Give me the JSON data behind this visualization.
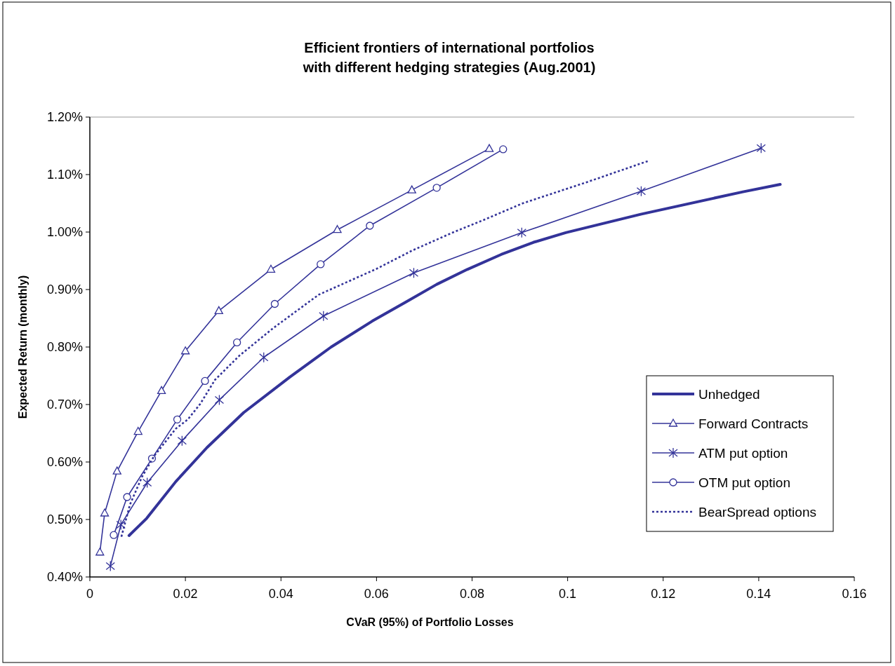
{
  "chart_data": {
    "type": "line",
    "title": "Efficient frontiers of international portfolios\nwith different hedging strategies (Aug.2001)",
    "xlabel": "CVaR (95%) of  Portfolio Losses",
    "ylabel": "Expected Return (monthly)",
    "xlim": [
      0,
      0.16
    ],
    "xticks": [
      0,
      0.02,
      0.04,
      0.06,
      0.08,
      0.1,
      0.12,
      0.14,
      0.16
    ],
    "ylim": [
      0.4,
      1.2
    ],
    "yticks": [
      {
        "value": 0.4,
        "label": "0.40%"
      },
      {
        "value": 0.5,
        "label": "0.50%"
      },
      {
        "value": 0.6,
        "label": "0.60%"
      },
      {
        "value": 0.7,
        "label": "0.70%"
      },
      {
        "value": 0.8,
        "label": "0.80%"
      },
      {
        "value": 0.9,
        "label": "0.90%"
      },
      {
        "value": 1.0,
        "label": "1.00%"
      },
      {
        "value": 1.1,
        "label": "1.10%"
      },
      {
        "value": 1.2,
        "label": "1.20%"
      }
    ],
    "grid": false,
    "legend": "bottom right",
    "series": [
      {
        "name": "Unhedged",
        "color": "#333399",
        "marker": "none",
        "line_style": "solid",
        "x": [
          0.0082,
          0.0119,
          0.018,
          0.0245,
          0.0322,
          0.0419,
          0.0505,
          0.0591,
          0.0661,
          0.0726,
          0.079,
          0.0861,
          0.0928,
          0.0996,
          0.1153,
          0.1367,
          0.1445
        ],
        "values": [
          0.472,
          0.502,
          0.566,
          0.625,
          0.686,
          0.748,
          0.8,
          0.845,
          0.878,
          0.909,
          0.935,
          0.961,
          0.982,
          0.999,
          1.031,
          1.07,
          1.083
        ]
      },
      {
        "name": "Forward Contracts",
        "color": "#333399",
        "marker": "triangle",
        "line_style": "solid",
        "x": [
          0.0021,
          0.0031,
          0.0057,
          0.0101,
          0.015,
          0.02,
          0.027,
          0.0379,
          0.0518,
          0.0674,
          0.0836
        ],
        "values": [
          0.443,
          0.511,
          0.584,
          0.653,
          0.724,
          0.793,
          0.863,
          0.935,
          1.004,
          1.073,
          1.145
        ]
      },
      {
        "name": "ATM put option",
        "color": "#333399",
        "marker": "cross",
        "line_style": "solid",
        "x": [
          0.0043,
          0.0065,
          0.012,
          0.0193,
          0.0271,
          0.0364,
          0.0489,
          0.0678,
          0.0904,
          0.1154,
          0.1405
        ],
        "values": [
          0.419,
          0.491,
          0.564,
          0.637,
          0.708,
          0.782,
          0.854,
          0.929,
          0.999,
          1.071,
          1.146
        ]
      },
      {
        "name": "OTM put option",
        "color": "#333399",
        "marker": "circle",
        "line_style": "solid",
        "x": [
          0.005,
          0.0078,
          0.013,
          0.0183,
          0.0241,
          0.0308,
          0.0387,
          0.0483,
          0.0586,
          0.0726,
          0.0865
        ],
        "values": [
          0.473,
          0.539,
          0.606,
          0.674,
          0.741,
          0.808,
          0.875,
          0.944,
          1.011,
          1.077,
          1.144
        ]
      },
      {
        "name": "BearSpread options",
        "color": "#333399",
        "marker": "none",
        "line_style": "dotted",
        "x": [
          0.0066,
          0.0084,
          0.0109,
          0.0135,
          0.018,
          0.0205,
          0.0231,
          0.0262,
          0.0313,
          0.0384,
          0.0479,
          0.06,
          0.0675,
          0.0759,
          0.0827,
          0.0906,
          0.1041,
          0.117
        ],
        "values": [
          0.47,
          0.526,
          0.574,
          0.611,
          0.658,
          0.674,
          0.701,
          0.743,
          0.785,
          0.833,
          0.891,
          0.936,
          0.968,
          0.999,
          1.022,
          1.05,
          1.087,
          1.124
        ]
      }
    ]
  }
}
